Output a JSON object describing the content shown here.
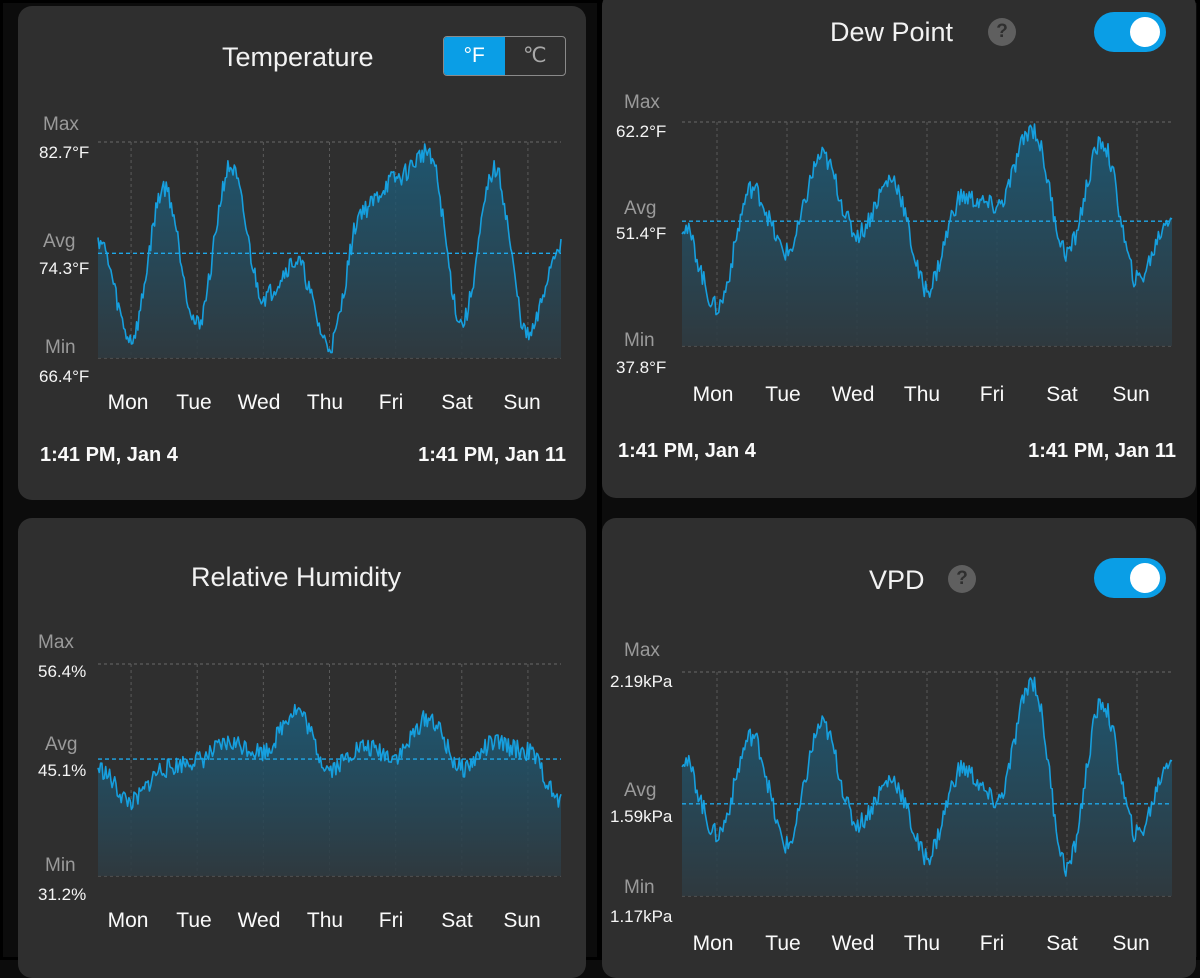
{
  "colors": {
    "accent": "#0a9ee6",
    "panel": "#2f2f2f",
    "line": "#169fde"
  },
  "temperature": {
    "title": "Temperature",
    "unit_f": "°F",
    "unit_c": "℃",
    "max_label": "Max",
    "max_value": "82.7°F",
    "avg_label": "Avg",
    "avg_value": "74.3°F",
    "min_label": "Min",
    "min_value": "66.4°F",
    "start": "1:41 PM, Jan 4",
    "end": "1:41 PM, Jan 11"
  },
  "dew_point": {
    "title": "Dew Point",
    "help_icon": "?",
    "max_label": "Max",
    "max_value": "62.2°F",
    "avg_label": "Avg",
    "avg_value": "51.4°F",
    "min_label": "Min",
    "min_value": "37.8°F",
    "start": "1:41 PM, Jan 4",
    "end": "1:41 PM, Jan 11"
  },
  "humidity": {
    "title": "Relative Humidity",
    "max_label": "Max",
    "max_value": "56.4%",
    "avg_label": "Avg",
    "avg_value": "45.1%",
    "min_label": "Min",
    "min_value": "31.2%"
  },
  "vpd": {
    "title": "VPD",
    "help_icon": "?",
    "max_label": "Max",
    "max_value": "2.19kPa",
    "avg_label": "Avg",
    "avg_value": "1.59kPa",
    "min_label": "Min",
    "min_value": "1.17kPa"
  },
  "days": [
    "Mon",
    "Tue",
    "Wed",
    "Thu",
    "Fri",
    "Sat",
    "Sun"
  ],
  "chart_data": [
    {
      "id": "temp",
      "type": "area",
      "title": "Temperature",
      "unit": "°F",
      "x": [
        0,
        0.5,
        1,
        1.5,
        2,
        2.5,
        3,
        3.5,
        4,
        4.5,
        5,
        5.5,
        6,
        6.5,
        7
      ],
      "xlabels": [
        "Mon",
        "Tue",
        "Wed",
        "Thu",
        "Fri",
        "Sat",
        "Sun"
      ],
      "ylim": [
        66.4,
        82.7
      ],
      "avg": 74.3,
      "values": [
        75.4,
        67.8,
        79.3,
        68.9,
        80.8,
        71.0,
        73.7,
        67.3,
        77.6,
        79.9,
        82.0,
        69.0,
        80.6,
        68.0,
        75.0
      ]
    },
    {
      "id": "dew",
      "type": "area",
      "title": "Dew Point",
      "unit": "°F",
      "x": [
        0,
        0.5,
        1,
        1.5,
        2,
        2.5,
        3,
        3.5,
        4,
        4.5,
        5,
        5.5,
        6,
        6.5,
        7
      ],
      "xlabels": [
        "Mon",
        "Tue",
        "Wed",
        "Thu",
        "Fri",
        "Sat",
        "Sun"
      ],
      "ylim": [
        37.8,
        62.2
      ],
      "avg": 51.4,
      "values": [
        51.0,
        42.0,
        55.0,
        48.0,
        58.5,
        50.0,
        56.0,
        44.0,
        54.0,
        53.0,
        61.5,
        48.0,
        60.0,
        45.0,
        52.0
      ]
    },
    {
      "id": "rh",
      "type": "area",
      "title": "Relative Humidity",
      "unit": "%",
      "x": [
        0,
        0.5,
        1,
        1.5,
        2,
        2.5,
        3,
        3.5,
        4,
        4.5,
        5,
        5.5,
        6,
        6.5,
        7
      ],
      "xlabels": [
        "Mon",
        "Tue",
        "Wed",
        "Thu",
        "Fri",
        "Sat",
        "Sun"
      ],
      "ylim": [
        31.2,
        56.4
      ],
      "avg": 45.1,
      "values": [
        44.0,
        40.0,
        44.0,
        45.0,
        47.0,
        46.0,
        51.0,
        44.0,
        46.5,
        45.5,
        50.0,
        44.0,
        47.0,
        46.0,
        40.0
      ]
    },
    {
      "id": "vpd",
      "type": "area",
      "title": "VPD",
      "unit": "kPa",
      "x": [
        0,
        0.5,
        1,
        1.5,
        2,
        2.5,
        3,
        3.5,
        4,
        4.5,
        5,
        5.5,
        6,
        6.5,
        7
      ],
      "xlabels": [
        "Mon",
        "Tue",
        "Wed",
        "Thu",
        "Fri",
        "Sat",
        "Sun"
      ],
      "ylim": [
        1.17,
        2.19
      ],
      "avg": 1.59,
      "values": [
        1.8,
        1.45,
        1.9,
        1.4,
        1.95,
        1.5,
        1.7,
        1.35,
        1.75,
        1.6,
        2.15,
        1.3,
        2.05,
        1.45,
        1.8
      ]
    }
  ]
}
